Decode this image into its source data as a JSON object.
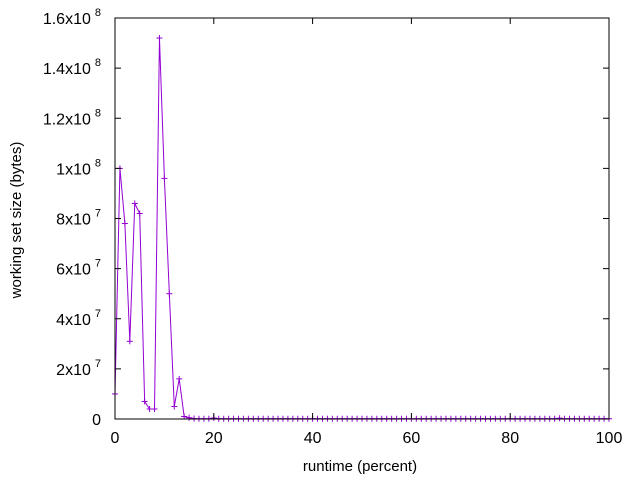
{
  "chart_data": {
    "type": "line",
    "xlabel": "runtime (percent)",
    "ylabel": "working set size (bytes)",
    "xlim": [
      0,
      100
    ],
    "ylim": [
      0,
      160000000
    ],
    "x_ticks": [
      {
        "value": 0,
        "label": "0"
      },
      {
        "value": 20,
        "label": "20"
      },
      {
        "value": 40,
        "label": "40"
      },
      {
        "value": 60,
        "label": "60"
      },
      {
        "value": 80,
        "label": "80"
      },
      {
        "value": 100,
        "label": "100"
      }
    ],
    "y_ticks": [
      {
        "value": 0,
        "mantissa": "0",
        "exponent": ""
      },
      {
        "value": 20000000,
        "mantissa": "2x10",
        "exponent": "7"
      },
      {
        "value": 40000000,
        "mantissa": "4x10",
        "exponent": "7"
      },
      {
        "value": 60000000,
        "mantissa": "6x10",
        "exponent": "7"
      },
      {
        "value": 80000000,
        "mantissa": "8x10",
        "exponent": "7"
      },
      {
        "value": 100000000,
        "mantissa": "1x10",
        "exponent": "8"
      },
      {
        "value": 120000000,
        "mantissa": "1.2x10",
        "exponent": "8"
      },
      {
        "value": 140000000,
        "mantissa": "1.4x10",
        "exponent": "8"
      },
      {
        "value": 160000000,
        "mantissa": "1.6x10",
        "exponent": "8"
      }
    ],
    "grid": false,
    "series": [
      {
        "color": "#9400d3",
        "marker": "plus",
        "x": [
          0,
          1,
          2,
          3,
          4,
          5,
          6,
          7,
          8,
          9,
          10,
          11,
          12,
          13,
          14,
          15,
          16,
          17,
          18,
          19,
          20,
          21,
          22,
          23,
          24,
          25,
          26,
          27,
          28,
          29,
          30,
          31,
          32,
          33,
          34,
          35,
          36,
          37,
          38,
          39,
          40,
          41,
          42,
          43,
          44,
          45,
          46,
          47,
          48,
          49,
          50,
          51,
          52,
          53,
          54,
          55,
          56,
          57,
          58,
          59,
          60,
          61,
          62,
          63,
          64,
          65,
          66,
          67,
          68,
          69,
          70,
          71,
          72,
          73,
          74,
          75,
          76,
          77,
          78,
          79,
          80,
          81,
          82,
          83,
          84,
          85,
          86,
          87,
          88,
          89,
          90,
          91,
          92,
          93,
          94,
          95,
          96,
          97,
          98,
          99,
          100
        ],
        "y": [
          10000000,
          100000000,
          78000000,
          31000000,
          86000000,
          82000000,
          7000000,
          4000000,
          4000000,
          152000000,
          96000000,
          50000000,
          5000000,
          16000000,
          1000000,
          500000,
          200000,
          100000,
          100000,
          100000,
          400000,
          100000,
          100000,
          100000,
          100000,
          100000,
          100000,
          100000,
          100000,
          100000,
          100000,
          100000,
          100000,
          100000,
          100000,
          100000,
          100000,
          100000,
          100000,
          100000,
          100000,
          100000,
          100000,
          100000,
          100000,
          100000,
          100000,
          100000,
          100000,
          100000,
          100000,
          100000,
          100000,
          100000,
          100000,
          100000,
          100000,
          100000,
          100000,
          100000,
          100000,
          100000,
          100000,
          100000,
          100000,
          100000,
          100000,
          100000,
          100000,
          100000,
          100000,
          100000,
          100000,
          100000,
          100000,
          100000,
          100000,
          100000,
          100000,
          100000,
          100000,
          100000,
          100000,
          100000,
          100000,
          100000,
          100000,
          100000,
          100000,
          100000,
          300000,
          100000,
          100000,
          100000,
          100000,
          100000,
          100000,
          100000,
          100000,
          100000,
          100000
        ]
      }
    ]
  }
}
